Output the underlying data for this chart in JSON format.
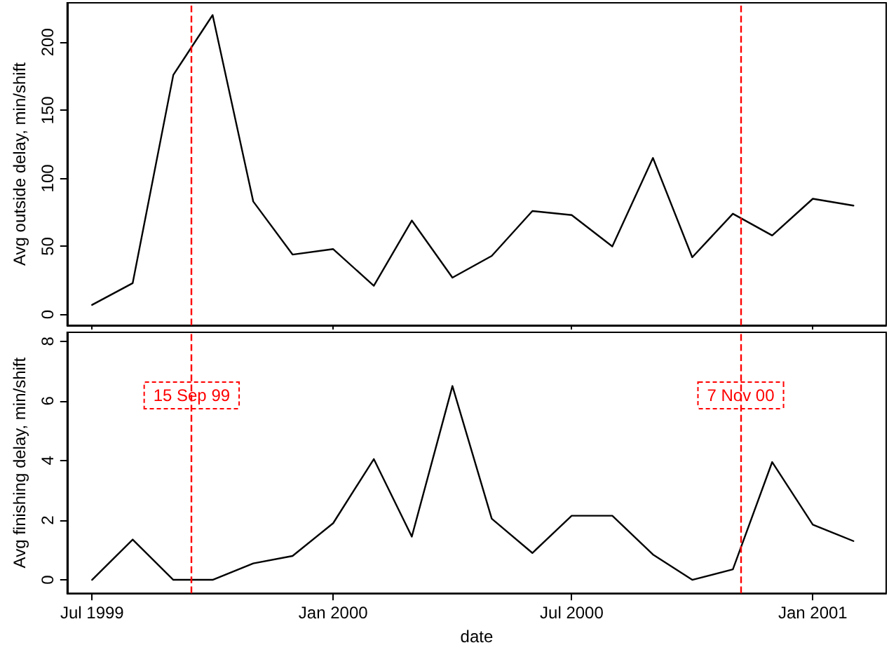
{
  "chart_data": [
    {
      "type": "line",
      "ylabel": "Avg outside delay, min/shift",
      "tick_labels": "y",
      "grid": false,
      "marker": "none",
      "line_style": "solid",
      "x": [
        "1999-07-01",
        "1999-08-01",
        "1999-09-01",
        "1999-10-01",
        "1999-11-01",
        "1999-12-01",
        "2000-01-01",
        "2000-02-01",
        "2000-03-01",
        "2000-04-01",
        "2000-05-01",
        "2000-06-01",
        "2000-07-01",
        "2000-08-01",
        "2000-09-01",
        "2000-10-01",
        "2000-11-01",
        "2000-12-01",
        "2001-01-01",
        "2001-02-01"
      ],
      "series": [
        {
          "color": "#000000",
          "values": [
            7,
            23,
            176,
            220,
            83,
            44,
            48,
            21,
            69,
            27,
            43,
            76,
            73,
            50,
            115,
            42,
            74,
            58,
            85,
            80
          ]
        }
      ],
      "xlim": [
        "1999-06-12",
        "2001-02-26"
      ],
      "xticks": [
        {
          "value": "1999-07-01",
          "label": null
        },
        {
          "value": "2000-01-01",
          "label": null
        },
        {
          "value": "2000-07-01",
          "label": null
        },
        {
          "value": "2001-01-01",
          "label": null
        }
      ],
      "ylim": [
        -8,
        229
      ],
      "yticks": [
        0,
        50,
        100,
        150,
        200
      ],
      "ref_lines": [
        {
          "axis": "x",
          "value": "1999-09-15",
          "color": "#ff0000",
          "line_style": "dashed"
        },
        {
          "axis": "x",
          "value": "2000-11-07",
          "color": "#ff0000",
          "line_style": "dashed"
        }
      ]
    },
    {
      "type": "line",
      "ylabel": "Avg finishing delay, min/shift",
      "xlabel": "date",
      "grid": false,
      "marker": "none",
      "line_style": "solid",
      "x": [
        "1999-07-01",
        "1999-08-01",
        "1999-09-01",
        "1999-10-01",
        "1999-11-01",
        "1999-12-01",
        "2000-01-01",
        "2000-02-01",
        "2000-03-01",
        "2000-04-01",
        "2000-05-01",
        "2000-06-01",
        "2000-07-01",
        "2000-08-01",
        "2000-09-01",
        "2000-10-01",
        "2000-11-01",
        "2000-12-01",
        "2001-01-01",
        "2001-02-01"
      ],
      "series": [
        {
          "color": "#000000",
          "values": [
            0,
            1.35,
            0,
            0,
            0.55,
            0.8,
            1.9,
            4.05,
            1.45,
            6.5,
            2.05,
            0.9,
            2.15,
            2.15,
            0.85,
            0,
            0.35,
            3.95,
            1.85,
            1.3
          ]
        }
      ],
      "xlim": [
        "1999-06-12",
        "2001-02-26"
      ],
      "xticks": [
        {
          "value": "1999-07-01",
          "label": "Jul 1999"
        },
        {
          "value": "2000-01-01",
          "label": "Jan 2000"
        },
        {
          "value": "2000-07-01",
          "label": "Jul 2000"
        },
        {
          "value": "2001-01-01",
          "label": "Jan 2001"
        }
      ],
      "ylim": [
        -0.45,
        8.3
      ],
      "yticks": [
        0,
        2,
        4,
        6,
        8
      ],
      "ref_lines": [
        {
          "axis": "x",
          "value": "1999-09-15",
          "label": "15 Sep 99",
          "color": "#ff0000",
          "line_style": "dashed"
        },
        {
          "axis": "x",
          "value": "2000-11-07",
          "label": "7 Nov 00",
          "color": "#ff0000",
          "line_style": "dashed"
        }
      ]
    }
  ]
}
